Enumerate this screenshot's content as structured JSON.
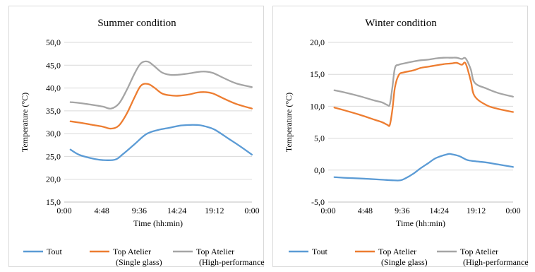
{
  "colors": {
    "tout": "#5b9bd5",
    "single": "#ed7d31",
    "high": "#a5a5a5"
  },
  "chart_data": [
    {
      "type": "line",
      "title": "Summer condition",
      "xlabel": "Time (hh:min)",
      "ylabel": "Temperature (°C)",
      "ylim": [
        15,
        50
      ],
      "xlim_hours": [
        0,
        24
      ],
      "y_ticks": [
        "15,0",
        "20,0",
        "25,0",
        "30,0",
        "35,0",
        "40,0",
        "45,0",
        "50,0"
      ],
      "x_ticks": [
        "0:00",
        "4:48",
        "9:36",
        "14:24",
        "19:12",
        "0:00"
      ],
      "grid": "horizontal",
      "legend": "bottom",
      "series": [
        {
          "name": "Tout",
          "color_key": "tout",
          "x": [
            "0:48",
            "2:00",
            "4:00",
            "5:00",
            "6:30",
            "7:30",
            "9:00",
            "10:30",
            "12:00",
            "13:30",
            "15:00",
            "17:00",
            "18:00",
            "19:12",
            "21:00",
            "22:30",
            "23:59"
          ],
          "values": [
            26.5,
            25.3,
            24.4,
            24.2,
            24.3,
            25.5,
            27.7,
            29.9,
            30.8,
            31.3,
            31.8,
            31.9,
            31.6,
            30.9,
            28.9,
            27.2,
            25.4
          ]
        },
        {
          "name": "Top Atelier\n(Single glass)",
          "color_key": "single",
          "x": [
            "0:48",
            "2:00",
            "4:00",
            "5:00",
            "6:00",
            "7:00",
            "8:00",
            "9:00",
            "9:48",
            "10:40",
            "11:30",
            "12:30",
            "13:30",
            "14:30",
            "16:00",
            "17:00",
            "18:00",
            "19:00",
            "20:30",
            "22:00",
            "23:59"
          ],
          "values": [
            32.7,
            32.4,
            31.8,
            31.5,
            31.1,
            31.8,
            34.4,
            38.0,
            40.5,
            40.9,
            40.1,
            38.8,
            38.4,
            38.3,
            38.6,
            39.0,
            39.1,
            38.8,
            37.6,
            36.5,
            35.5
          ]
        },
        {
          "name": "Top Atelier\n(High-performance)",
          "color_key": "high",
          "x": [
            "0:48",
            "2:00",
            "4:00",
            "5:00",
            "6:00",
            "7:00",
            "8:00",
            "9:00",
            "9:48",
            "10:40",
            "11:30",
            "12:30",
            "13:30",
            "14:30",
            "16:00",
            "17:00",
            "18:00",
            "19:00",
            "20:30",
            "22:00",
            "23:59"
          ],
          "values": [
            36.9,
            36.7,
            36.2,
            35.9,
            35.5,
            36.6,
            39.6,
            43.2,
            45.4,
            45.8,
            44.8,
            43.4,
            42.9,
            42.9,
            43.2,
            43.5,
            43.6,
            43.3,
            42.1,
            41.0,
            40.2
          ]
        }
      ]
    },
    {
      "type": "line",
      "title": "Winter condition",
      "xlabel": "Time (hh:min)",
      "ylabel": "Temperature (°C)",
      "ylim": [
        -5,
        20
      ],
      "xlim_hours": [
        0,
        24
      ],
      "y_ticks": [
        "-5,0",
        "0,0",
        "5,0",
        "10,0",
        "15,0",
        "20,0"
      ],
      "x_ticks": [
        "0:00",
        "4:48",
        "9:36",
        "14:24",
        "19:12",
        "0:00"
      ],
      "grid": "horizontal",
      "legend": "bottom",
      "series": [
        {
          "name": "Tout",
          "color_key": "tout",
          "x": [
            "0:48",
            "2:00",
            "4:00",
            "5:30",
            "7:00",
            "8:30",
            "9:20",
            "10:00",
            "11:00",
            "12:00",
            "13:00",
            "14:00",
            "15:30",
            "16:00",
            "17:00",
            "18:00",
            "19:00",
            "20:30",
            "22:00",
            "23:59"
          ],
          "values": [
            -1.1,
            -1.2,
            -1.3,
            -1.4,
            -1.5,
            -1.6,
            -1.6,
            -1.3,
            -0.6,
            0.3,
            1.1,
            1.9,
            2.5,
            2.5,
            2.2,
            1.6,
            1.4,
            1.2,
            0.9,
            0.5
          ]
        },
        {
          "name": "Top Atelier\n(Single glass)",
          "color_key": "single",
          "x": [
            "0:48",
            "2:00",
            "4:00",
            "6:00",
            "7:00",
            "7:40",
            "8:00",
            "8:20",
            "8:40",
            "9:10",
            "9:48",
            "11:00",
            "12:00",
            "13:00",
            "14:00",
            "15:00",
            "16:00",
            "16:40",
            "17:20",
            "17:50",
            "18:30",
            "19:00",
            "20:30",
            "22:00",
            "23:59"
          ],
          "values": [
            9.8,
            9.4,
            8.7,
            7.9,
            7.5,
            7.1,
            7.1,
            9.5,
            13.0,
            14.9,
            15.3,
            15.6,
            16.0,
            16.2,
            16.4,
            16.6,
            16.7,
            16.8,
            16.5,
            16.7,
            14.0,
            11.6,
            10.2,
            9.6,
            9.1
          ]
        },
        {
          "name": "Top Atelier\n(High-performance)",
          "color_key": "high",
          "x": [
            "0:48",
            "2:00",
            "4:00",
            "6:00",
            "7:00",
            "7:40",
            "8:00",
            "8:20",
            "8:40",
            "9:10",
            "9:48",
            "11:00",
            "12:00",
            "13:00",
            "14:00",
            "15:00",
            "16:00",
            "16:40",
            "17:20",
            "17:50",
            "18:30",
            "19:00",
            "20:30",
            "22:00",
            "23:59"
          ],
          "values": [
            12.5,
            12.2,
            11.6,
            10.9,
            10.6,
            10.2,
            10.3,
            13.0,
            16.0,
            16.5,
            16.7,
            17.0,
            17.2,
            17.3,
            17.5,
            17.6,
            17.6,
            17.6,
            17.4,
            17.5,
            15.8,
            13.7,
            12.8,
            12.1,
            11.5
          ]
        }
      ]
    }
  ]
}
